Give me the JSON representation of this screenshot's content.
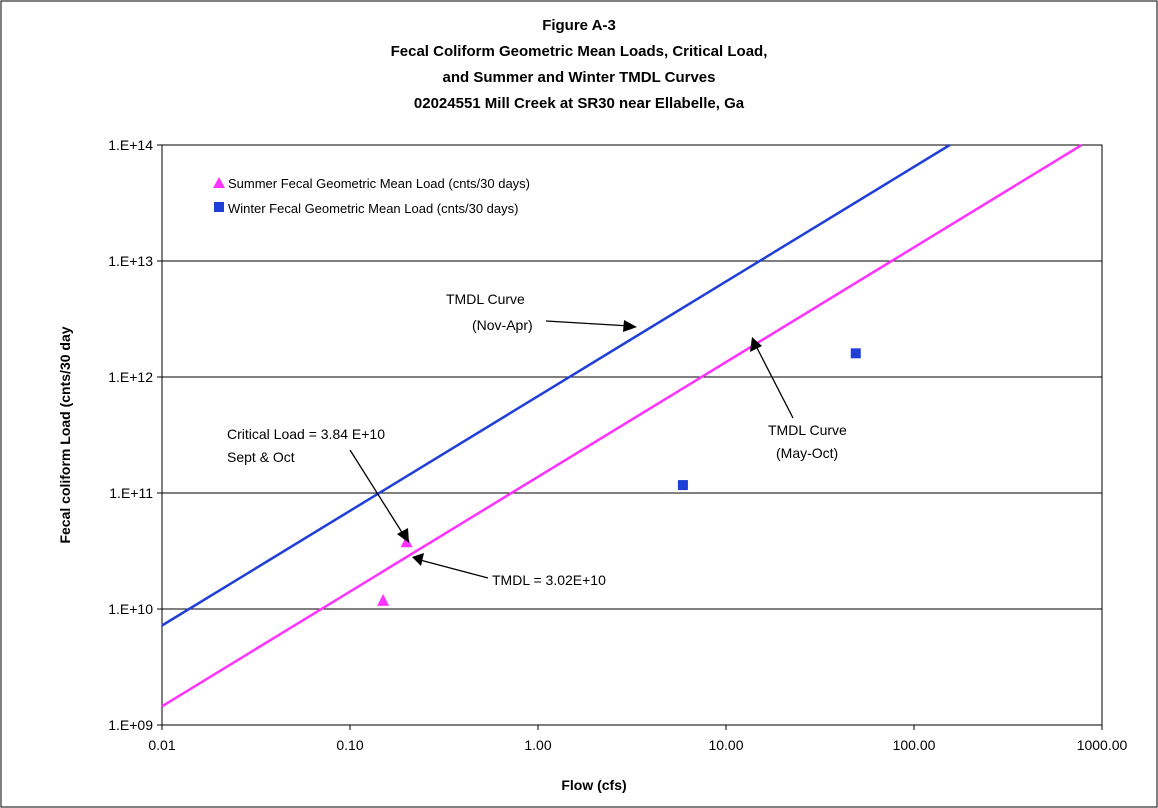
{
  "chart_data": {
    "type": "scatter",
    "title_lines": [
      "Figure A-3",
      "Fecal Coliform Geometric Mean Loads,  Critical Load,",
      "and Summer and Winter TMDL Curves",
      "02024551 Mill Creek at SR30 near Ellabelle, Ga"
    ],
    "xlabel": "Flow   (cfs)",
    "ylabel": "Fecal coliform Load  (cnts/30 day",
    "x_scale": "log",
    "y_scale": "log",
    "xlim": [
      0.01,
      1000
    ],
    "ylim": [
      1000000000.0,
      100000000000000.0
    ],
    "x_tick_labels": [
      "0.01",
      "0.10",
      "1.00",
      "10.00",
      "100.00",
      "1000.00"
    ],
    "y_tick_labels": [
      "1.E+09",
      "1.E+10",
      "1.E+11",
      "1.E+12",
      "1.E+13",
      "1.E+14"
    ],
    "grid": "horizontal major gridlines",
    "legend_position": "top-left",
    "series": [
      {
        "name": "Summer Fecal Geometric Mean Load (cnts/30 days)",
        "kind": "points",
        "marker": "triangle",
        "color": "#ff33ff",
        "points": [
          [
            0.15,
            12000000000.0
          ],
          [
            0.2,
            38400000000.0
          ]
        ]
      },
      {
        "name": "Winter Fecal Geometric Mean Load (cnts/30 days)",
        "kind": "points",
        "marker": "square",
        "color": "#1f3fd8",
        "points": [
          [
            5.9,
            117000000000.0
          ],
          [
            49,
            1600000000000.0
          ]
        ]
      },
      {
        "kind": "line",
        "color": "#1f3fd8",
        "points": [
          [
            0.01,
            7200000000.0
          ],
          [
            155,
            100000000000000.0
          ]
        ]
      },
      {
        "kind": "line",
        "color": "#ff33ff",
        "points": [
          [
            0.01,
            1450000000.0
          ],
          [
            780,
            100000000000000.0
          ]
        ]
      }
    ],
    "annotations": {
      "tmdl_winter": [
        "TMDL Curve",
        "(Nov-Apr)"
      ],
      "tmdl_summer": [
        "TMDL Curve",
        "(May-Oct)"
      ],
      "critical": [
        "Critical Load = 3.84 E+10",
        "Sept & Oct"
      ],
      "tmdl_value": "TMDL = 3.02E+10"
    }
  }
}
